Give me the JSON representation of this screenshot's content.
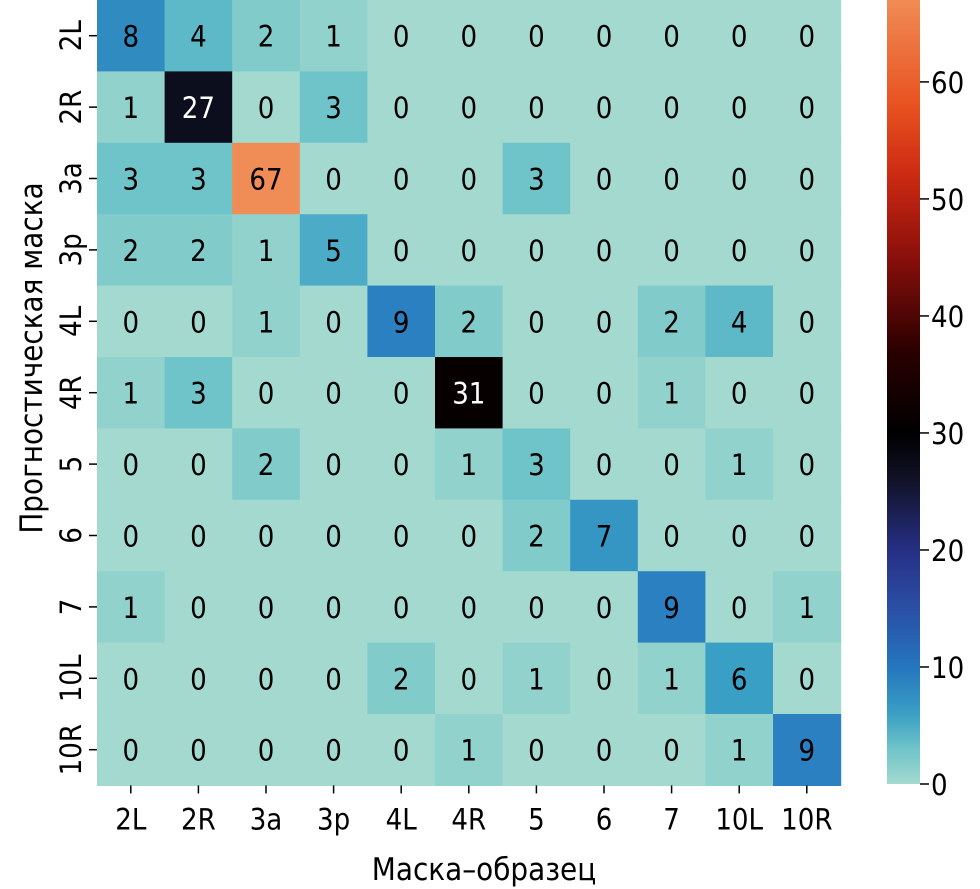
{
  "chart_data": {
    "type": "heatmap",
    "xlabel": "Маска–образец",
    "ylabel": "Прогностическая маска",
    "x_categories": [
      "2L",
      "2R",
      "3a",
      "3p",
      "4L",
      "4R",
      "5",
      "6",
      "7",
      "10L",
      "10R"
    ],
    "y_categories": [
      "2L",
      "2R",
      "3a",
      "3p",
      "4L",
      "4R",
      "5",
      "6",
      "7",
      "10L",
      "10R"
    ],
    "values": [
      [
        8,
        4,
        2,
        1,
        0,
        0,
        0,
        0,
        0,
        0,
        0
      ],
      [
        1,
        27,
        0,
        3,
        0,
        0,
        0,
        0,
        0,
        0,
        0
      ],
      [
        3,
        3,
        67,
        0,
        0,
        0,
        3,
        0,
        0,
        0,
        0
      ],
      [
        2,
        2,
        1,
        5,
        0,
        0,
        0,
        0,
        0,
        0,
        0
      ],
      [
        0,
        0,
        1,
        0,
        9,
        2,
        0,
        0,
        2,
        4,
        0
      ],
      [
        1,
        3,
        0,
        0,
        0,
        31,
        0,
        0,
        1,
        0,
        0
      ],
      [
        0,
        0,
        2,
        0,
        0,
        1,
        3,
        0,
        0,
        1,
        0
      ],
      [
        0,
        0,
        0,
        0,
        0,
        0,
        2,
        7,
        0,
        0,
        0
      ],
      [
        1,
        0,
        0,
        0,
        0,
        0,
        0,
        0,
        9,
        0,
        1
      ],
      [
        0,
        0,
        0,
        0,
        2,
        0,
        1,
        0,
        1,
        6,
        0
      ],
      [
        0,
        0,
        0,
        0,
        0,
        1,
        0,
        0,
        0,
        1,
        9
      ]
    ],
    "colorbar": {
      "min": 0,
      "max": 67,
      "ticks": [
        0,
        10,
        20,
        30,
        40,
        50,
        60
      ]
    },
    "colormap_stops": [
      {
        "v": 0,
        "color": "#a4d9cf"
      },
      {
        "v": 3,
        "color": "#6fc4c9"
      },
      {
        "v": 6,
        "color": "#3a9fc4"
      },
      {
        "v": 10,
        "color": "#2576be"
      },
      {
        "v": 15,
        "color": "#2a4fa5"
      },
      {
        "v": 20,
        "color": "#262f84"
      },
      {
        "v": 26,
        "color": "#111227"
      },
      {
        "v": 30,
        "color": "#000000"
      },
      {
        "v": 37,
        "color": "#2a0000"
      },
      {
        "v": 45,
        "color": "#8a0f0b"
      },
      {
        "v": 52,
        "color": "#cc2a12"
      },
      {
        "v": 58,
        "color": "#e85220"
      },
      {
        "v": 67,
        "color": "#f08c55"
      }
    ]
  }
}
